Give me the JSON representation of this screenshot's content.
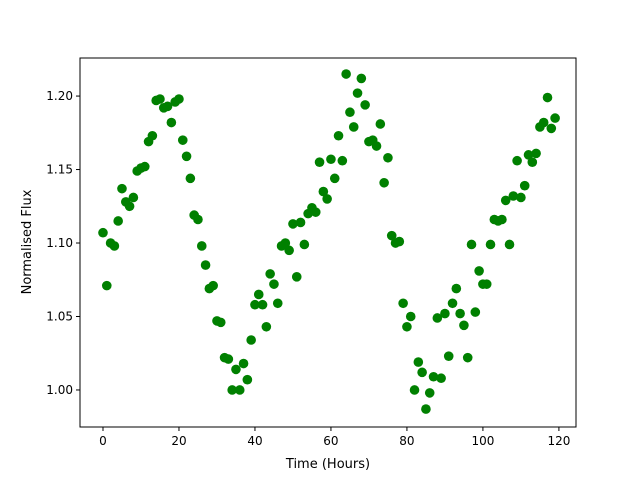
{
  "chart_data": {
    "type": "scatter",
    "title": "",
    "xlabel": "Time (Hours)",
    "ylabel": "Normalised Flux",
    "xlim": [
      -6.05,
      124.5
    ],
    "ylim": [
      0.9748,
      1.2259
    ],
    "xticks": [
      0,
      20,
      40,
      60,
      80,
      100,
      120
    ],
    "xtick_labels": [
      "0",
      "20",
      "40",
      "60",
      "80",
      "100",
      "120"
    ],
    "yticks": [
      1.0,
      1.05,
      1.1,
      1.15,
      1.2
    ],
    "ytick_labels": [
      "1.00",
      "1.05",
      "1.10",
      "1.15",
      "1.20"
    ],
    "grid": false,
    "marker_color": "#008000",
    "series": [
      {
        "x": [
          0,
          1,
          2,
          3,
          4,
          5,
          6,
          7,
          8,
          9,
          10,
          11,
          12,
          13,
          14,
          15,
          16,
          17,
          18,
          19,
          20,
          21,
          22,
          23,
          24,
          25,
          26,
          27,
          28,
          29,
          30,
          31,
          32,
          33,
          34,
          35,
          36,
          37,
          38,
          39,
          40,
          41,
          42,
          43,
          44,
          45,
          46,
          47,
          48,
          49,
          50,
          51,
          52,
          53,
          54,
          55,
          56,
          57,
          58,
          59,
          60,
          61,
          62,
          63,
          64,
          65,
          66,
          67,
          68,
          69,
          70,
          71,
          72,
          73,
          74,
          75,
          76,
          77,
          78,
          79,
          80,
          81,
          82,
          83,
          84,
          85,
          86,
          87,
          88,
          89,
          90,
          91,
          92,
          93,
          94,
          95,
          96,
          97,
          98,
          99,
          100,
          101,
          102,
          103,
          104,
          105,
          106,
          107,
          108,
          109,
          110,
          111,
          112,
          113,
          114,
          115,
          116,
          117,
          118,
          119
        ],
        "y": [
          1.107,
          1.071,
          1.1,
          1.098,
          1.115,
          1.137,
          1.128,
          1.125,
          1.131,
          1.149,
          1.151,
          1.152,
          1.169,
          1.173,
          1.197,
          1.198,
          1.192,
          1.193,
          1.182,
          1.196,
          1.198,
          1.17,
          1.159,
          1.144,
          1.119,
          1.116,
          1.098,
          1.085,
          1.069,
          1.071,
          1.047,
          1.046,
          1.022,
          1.021,
          1.0,
          1.014,
          1.0,
          1.018,
          1.007,
          1.034,
          1.058,
          1.065,
          1.058,
          1.043,
          1.079,
          1.072,
          1.059,
          1.098,
          1.1,
          1.095,
          1.113,
          1.077,
          1.114,
          1.099,
          1.12,
          1.124,
          1.121,
          1.155,
          1.135,
          1.13,
          1.157,
          1.144,
          1.173,
          1.156,
          1.215,
          1.189,
          1.179,
          1.202,
          1.212,
          1.194,
          1.169,
          1.17,
          1.166,
          1.181,
          1.141,
          1.158,
          1.105,
          1.1,
          1.101,
          1.059,
          1.043,
          1.05,
          1.0,
          1.019,
          1.012,
          0.987,
          0.998,
          1.009,
          1.049,
          1.008,
          1.052,
          1.023,
          1.059,
          1.069,
          1.052,
          1.044,
          1.022,
          1.099,
          1.053,
          1.081,
          1.072,
          1.072,
          1.099,
          1.116,
          1.115,
          1.116,
          1.129,
          1.099,
          1.132,
          1.156,
          1.131,
          1.139,
          1.16,
          1.155,
          1.161,
          1.179,
          1.182,
          1.199,
          1.178,
          1.185
        ]
      }
    ]
  }
}
